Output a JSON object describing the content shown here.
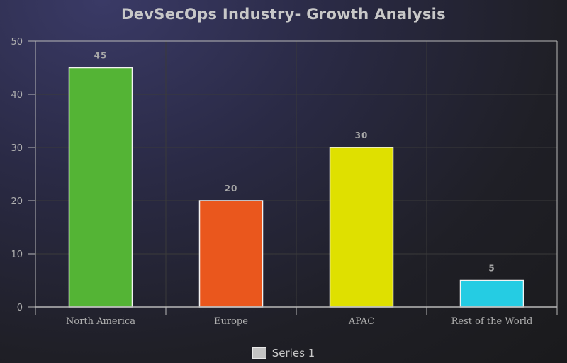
{
  "colors": {
    "grid": "#3a3a3a",
    "axis": "#b8b8b8",
    "tick_text": "#b0b0b0",
    "data_label": "#a8a8a8",
    "bar_border": "#f2f2f2"
  },
  "chart_data": {
    "type": "bar",
    "title": "DevSecOps Industry- Growth Analysis",
    "categories": [
      "North America",
      "Europe",
      "APAC",
      "Rest of the World"
    ],
    "series": [
      {
        "name": "Series 1",
        "values": [
          45,
          20,
          30,
          5
        ]
      }
    ],
    "bar_colors": [
      "#54b435",
      "#ea571d",
      "#dfe000",
      "#25cce3"
    ],
    "y_ticks": [
      "0",
      "10",
      "20",
      "30",
      "40",
      "50"
    ],
    "ylim": [
      0,
      50
    ],
    "grid": true,
    "legend_position": "bottom-center"
  }
}
